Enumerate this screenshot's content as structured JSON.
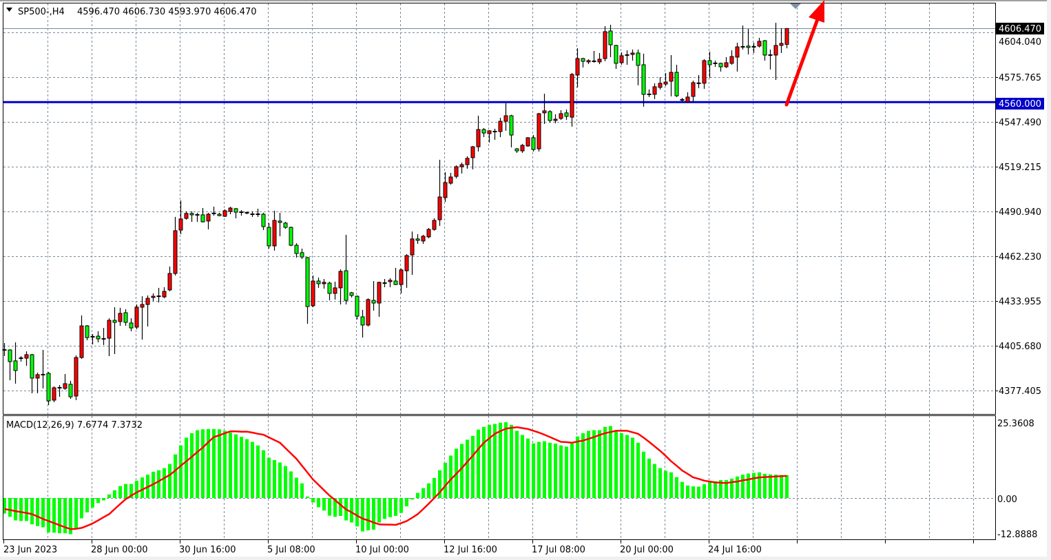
{
  "header": {
    "symbol": "SP500-,H4",
    "ohlc": "4596.470 4606.730 4593.970 4606.470"
  },
  "price_axis": {
    "labels": [
      "4604.040",
      "4575.765",
      "4547.490",
      "4519.215",
      "4490.940",
      "4462.230",
      "4433.955",
      "4405.680",
      "4377.405"
    ],
    "bid_label": "4606.470",
    "line_label": "4560.000"
  },
  "macd_axis": {
    "labels": [
      "25.3608",
      "0.00",
      "-12.8888"
    ]
  },
  "macd_header": "MACD(12,26,9) 7.6774 7.3732",
  "time_axis": {
    "labels": [
      "23 Jun 2023",
      "28 Jun 00:00",
      "30 Jun 16:00",
      "5 Jul 08:00",
      "10 Jul 00:00",
      "12 Jul 16:00",
      "17 Jul 08:00",
      "20 Jul 00:00",
      "24 Jul 16:00"
    ]
  },
  "colors": {
    "bull_body": "#ff0000",
    "bear_body": "#00ff00",
    "wick": "#000000",
    "hline": "#0000c8",
    "bid_line": "#778899",
    "grid": "#778899",
    "macd_hist": "#00ff00",
    "signal": "#ff0000",
    "arrow": "#ff0000"
  },
  "chart_data": [
    {
      "type": "candlestick",
      "title": "SP500-,H4",
      "timeframe": "H4",
      "ylim": [
        4364,
        4620
      ],
      "grid": true,
      "horizontal_line": 4560.0,
      "bid": 4606.47,
      "annotation": "red-arrow-up",
      "ohlc": [
        [
          4403.5,
          4407.9,
          4399.6,
          4403.5
        ],
        [
          4403.5,
          4403.9,
          4384.4,
          4396.1
        ],
        [
          4396.6,
          4408.3,
          4382.2,
          4390.5
        ],
        [
          4398.3,
          4399.6,
          4396.1,
          4398.3
        ],
        [
          4398.3,
          4402.6,
          4393.5,
          4400.5
        ],
        [
          4400.5,
          4401.0,
          4376.1,
          4385.7
        ],
        [
          4385.7,
          4389.2,
          4376.1,
          4387.9
        ],
        [
          4387.9,
          4403.5,
          4379.2,
          4387.9
        ],
        [
          4388.7,
          4389.5,
          4368.7,
          4371.3
        ],
        [
          4371.8,
          4380.5,
          4370.5,
          4379.6
        ],
        [
          4379.6,
          4381.3,
          4373.9,
          4379.6
        ],
        [
          4379.2,
          4388.3,
          4378.3,
          4382.2
        ],
        [
          4381.8,
          4384.0,
          4372.6,
          4373.9
        ],
        [
          4374.4,
          4400.0,
          4371.8,
          4398.7
        ],
        [
          4398.7,
          4425.3,
          4397.9,
          4418.7
        ],
        [
          4418.7,
          4419.2,
          4409.6,
          4411.3
        ],
        [
          4411.8,
          4413.5,
          4407.0,
          4411.8
        ],
        [
          4412.2,
          4415.3,
          4408.3,
          4410.5
        ],
        [
          4410.5,
          4417.4,
          4406.6,
          4410.5
        ],
        [
          4410.9,
          4423.5,
          4399.6,
          4422.2
        ],
        [
          4422.2,
          4430.5,
          4400.9,
          4420.9
        ],
        [
          4421.4,
          4430.1,
          4418.7,
          4426.6
        ],
        [
          4427.0,
          4429.2,
          4418.7,
          4420.9
        ],
        [
          4420.5,
          4423.5,
          4415.3,
          4417.4
        ],
        [
          4417.9,
          4432.2,
          4416.6,
          4430.5
        ],
        [
          4430.5,
          4437.4,
          4410.0,
          4432.2
        ],
        [
          4432.2,
          4437.9,
          4418.3,
          4436.1
        ],
        [
          4436.6,
          4439.2,
          4434.4,
          4437.4
        ],
        [
          4437.4,
          4442.7,
          4433.5,
          4437.4
        ],
        [
          4437.0,
          4443.1,
          4436.1,
          4440.5
        ],
        [
          4441.4,
          4456.2,
          4440.5,
          4451.8
        ],
        [
          4451.8,
          4487.5,
          4450.5,
          4478.8
        ],
        [
          4479.2,
          4497.9,
          4476.6,
          4486.2
        ],
        [
          4486.6,
          4491.0,
          4485.7,
          4489.7
        ],
        [
          4489.7,
          4491.0,
          4484.4,
          4488.8
        ],
        [
          4488.3,
          4490.1,
          4484.4,
          4488.8
        ],
        [
          4488.8,
          4493.1,
          4484.0,
          4484.4
        ],
        [
          4484.9,
          4490.1,
          4479.6,
          4489.2
        ],
        [
          4489.7,
          4494.0,
          4488.3,
          4489.7
        ],
        [
          4489.2,
          4490.1,
          4487.9,
          4488.3
        ],
        [
          4487.9,
          4492.3,
          4487.5,
          4491.4
        ],
        [
          4491.0,
          4494.0,
          4489.2,
          4493.1
        ],
        [
          4492.7,
          4493.1,
          4486.6,
          4490.5
        ],
        [
          4490.5,
          4491.8,
          4488.3,
          4490.5
        ],
        [
          4490.1,
          4490.9,
          4489.2,
          4490.1
        ],
        [
          4489.2,
          4491.0,
          4487.5,
          4489.2
        ],
        [
          4489.2,
          4492.7,
          4487.5,
          4489.2
        ],
        [
          4489.2,
          4490.1,
          4479.2,
          4481.4
        ],
        [
          4480.9,
          4483.6,
          4467.5,
          4469.2
        ],
        [
          4469.2,
          4491.4,
          4466.2,
          4485.3
        ],
        [
          4484.9,
          4490.1,
          4475.3,
          4484.0
        ],
        [
          4483.6,
          4484.4,
          4480.0,
          4480.9
        ],
        [
          4480.9,
          4481.4,
          4469.0,
          4469.6
        ],
        [
          4469.6,
          4470.9,
          4461.8,
          4464.4
        ],
        [
          4464.9,
          4467.5,
          4460.9,
          4462.2
        ],
        [
          4461.8,
          4462.2,
          4420.0,
          4430.9
        ],
        [
          4431.4,
          4450.5,
          4430.5,
          4447.0
        ],
        [
          4447.0,
          4449.2,
          4442.7,
          4445.3
        ],
        [
          4445.3,
          4448.3,
          4442.2,
          4446.2
        ],
        [
          4445.7,
          4446.6,
          4434.8,
          4439.2
        ],
        [
          4439.2,
          4446.6,
          4435.3,
          4442.7
        ],
        [
          4442.7,
          4454.4,
          4432.2,
          4453.1
        ],
        [
          4453.5,
          4476.2,
          4432.2,
          4434.8
        ],
        [
          4439.6,
          4440.1,
          4436.6,
          4437.9
        ],
        [
          4437.4,
          4437.9,
          4422.7,
          4424.8
        ],
        [
          4424.4,
          4428.8,
          4411.3,
          4419.2
        ],
        [
          4419.2,
          4436.1,
          4418.3,
          4435.3
        ],
        [
          4434.8,
          4447.0,
          4428.3,
          4433.1
        ],
        [
          4433.1,
          4446.6,
          4424.4,
          4446.2
        ],
        [
          4445.7,
          4448.3,
          4443.1,
          4445.7
        ],
        [
          4446.6,
          4448.8,
          4443.1,
          4447.5
        ],
        [
          4447.0,
          4455.3,
          4444.4,
          4444.8
        ],
        [
          4444.8,
          4454.9,
          4439.2,
          4454.0
        ],
        [
          4453.5,
          4464.0,
          4442.7,
          4463.1
        ],
        [
          4463.5,
          4478.3,
          4450.9,
          4473.6
        ],
        [
          4473.6,
          4476.6,
          4470.5,
          4472.7
        ],
        [
          4472.3,
          4476.2,
          4470.5,
          4475.3
        ],
        [
          4474.9,
          4480.5,
          4474.0,
          4479.6
        ],
        [
          4479.6,
          4486.6,
          4478.8,
          4485.3
        ],
        [
          4485.7,
          4523.6,
          4481.8,
          4500.1
        ],
        [
          4499.7,
          4515.8,
          4497.0,
          4509.2
        ],
        [
          4508.8,
          4515.3,
          4507.9,
          4512.7
        ],
        [
          4513.1,
          4520.1,
          4511.8,
          4519.2
        ],
        [
          4519.2,
          4521.8,
          4514.9,
          4520.5
        ],
        [
          4520.5,
          4525.8,
          4517.9,
          4524.5
        ],
        [
          4524.9,
          4532.3,
          4517.5,
          4531.8
        ],
        [
          4531.8,
          4551.4,
          4528.8,
          4542.7
        ],
        [
          4542.7,
          4543.6,
          4537.9,
          4540.5
        ],
        [
          4540.1,
          4542.3,
          4534.5,
          4541.9
        ],
        [
          4541.4,
          4543.2,
          4536.2,
          4541.4
        ],
        [
          4541.4,
          4550.1,
          4537.9,
          4547.9
        ],
        [
          4547.9,
          4559.3,
          4541.9,
          4551.4
        ],
        [
          4551.4,
          4552.0,
          4531.4,
          4539.2
        ],
        [
          4530.5,
          4531.0,
          4527.9,
          4529.2
        ],
        [
          4529.2,
          4533.6,
          4527.9,
          4532.7
        ],
        [
          4532.3,
          4537.9,
          4531.8,
          4537.5
        ],
        [
          4537.5,
          4539.2,
          4528.8,
          4530.1
        ],
        [
          4530.5,
          4553.2,
          4528.8,
          4552.7
        ],
        [
          4553.2,
          4565.3,
          4546.2,
          4554.5
        ],
        [
          4554.0,
          4554.9,
          4547.1,
          4548.4
        ],
        [
          4548.4,
          4552.3,
          4546.6,
          4549.2
        ],
        [
          4549.7,
          4554.9,
          4548.8,
          4552.7
        ],
        [
          4553.2,
          4555.3,
          4548.8,
          4551.0
        ],
        [
          4550.5,
          4578.4,
          4544.5,
          4577.5
        ],
        [
          4577.1,
          4594.0,
          4569.3,
          4587.5
        ],
        [
          4587.5,
          4588.0,
          4581.9,
          4585.8
        ],
        [
          4585.4,
          4587.1,
          4584.0,
          4586.2
        ],
        [
          4585.8,
          4592.3,
          4584.9,
          4585.8
        ],
        [
          4585.4,
          4591.0,
          4584.0,
          4587.1
        ],
        [
          4587.5,
          4608.0,
          4585.8,
          4604.5
        ],
        [
          4604.9,
          4608.8,
          4588.4,
          4596.2
        ],
        [
          4595.8,
          4596.2,
          4581.0,
          4584.5
        ],
        [
          4584.9,
          4591.4,
          4583.6,
          4589.3
        ],
        [
          4589.7,
          4592.7,
          4583.6,
          4589.7
        ],
        [
          4590.1,
          4593.2,
          4586.2,
          4591.0
        ],
        [
          4591.0,
          4593.2,
          4570.6,
          4583.2
        ],
        [
          4583.6,
          4590.6,
          4557.1,
          4564.9
        ],
        [
          4564.9,
          4568.0,
          4563.2,
          4564.9
        ],
        [
          4564.9,
          4571.9,
          4561.9,
          4569.7
        ],
        [
          4569.3,
          4575.8,
          4568.0,
          4571.9
        ],
        [
          4571.4,
          4578.4,
          4570.1,
          4572.7
        ],
        [
          4573.2,
          4589.7,
          4563.6,
          4578.8
        ],
        [
          4578.8,
          4583.6,
          4563.2,
          4564.0
        ],
        [
          4561.4,
          4562.7,
          4560.1,
          4561.4
        ],
        [
          4560.1,
          4566.2,
          4559.5,
          4563.2
        ],
        [
          4563.6,
          4573.6,
          4560.1,
          4572.3
        ],
        [
          4571.9,
          4577.1,
          4568.8,
          4571.9
        ],
        [
          4571.9,
          4587.1,
          4568.4,
          4586.2
        ],
        [
          4586.2,
          4591.9,
          4575.3,
          4583.6
        ],
        [
          4584.5,
          4586.2,
          4582.3,
          4584.5
        ],
        [
          4584.5,
          4584.9,
          4579.3,
          4582.3
        ],
        [
          4582.3,
          4588.4,
          4581.5,
          4584.9
        ],
        [
          4584.5,
          4592.7,
          4583.6,
          4588.8
        ],
        [
          4588.4,
          4597.5,
          4579.3,
          4594.9
        ],
        [
          4594.9,
          4608.4,
          4593.2,
          4594.9
        ],
        [
          4595.4,
          4606.2,
          4590.1,
          4594.5
        ],
        [
          4594.9,
          4597.5,
          4591.0,
          4594.9
        ],
        [
          4595.4,
          4600.6,
          4594.5,
          4598.4
        ],
        [
          4598.8,
          4599.2,
          4586.2,
          4589.7
        ],
        [
          4589.7,
          4593.2,
          4580.6,
          4589.7
        ],
        [
          4589.7,
          4610.1,
          4574.0,
          4595.8
        ],
        [
          4595.8,
          4606.7,
          4591.0,
          4597.1
        ],
        [
          4596.47,
          4606.73,
          4593.97,
          4606.47
        ]
      ]
    },
    {
      "type": "bar+line",
      "title": "MACD(12,26,9)",
      "ylim": [
        -12.8888,
        25.3608
      ],
      "macd": [
        -5.2,
        -6.3,
        -7.5,
        -7.7,
        -7.7,
        -8.8,
        -9.4,
        -9.8,
        -11.5,
        -11.6,
        -11.8,
        -11.8,
        -12.1,
        -10.2,
        -6.8,
        -4.8,
        -3.2,
        -1.7,
        -0.8,
        1.2,
        2.6,
        4.0,
        4.7,
        4.7,
        5.8,
        6.9,
        7.8,
        8.8,
        9.3,
        10.0,
        11.4,
        14.6,
        17.6,
        20.2,
        21.7,
        22.7,
        23.0,
        23.1,
        23.1,
        23.0,
        22.5,
        21.9,
        21.3,
        20.5,
        19.7,
        18.8,
        17.6,
        16.0,
        13.5,
        12.7,
        11.9,
        10.7,
        8.9,
        6.8,
        4.9,
        0.5,
        -1.5,
        -3.1,
        -4.2,
        -5.9,
        -6.3,
        -6.0,
        -7.5,
        -8.2,
        -9.5,
        -11.2,
        -10.8,
        -10.6,
        -8.2,
        -7.0,
        -6.4,
        -6.0,
        -5.0,
        -2.8,
        -0.5,
        1.7,
        3.3,
        4.9,
        6.7,
        9.3,
        11.8,
        14.2,
        16.5,
        18.1,
        19.5,
        20.8,
        22.9,
        23.8,
        24.5,
        24.8,
        25.2,
        25.4,
        24.5,
        22.5,
        21.1,
        19.9,
        18.3,
        18.8,
        19.0,
        18.5,
        18.2,
        17.6,
        17.2,
        18.2,
        20.6,
        21.7,
        22.5,
        22.7,
        22.7,
        23.8,
        24.1,
        22.6,
        21.7,
        21.1,
        20.2,
        18.5,
        15.5,
        13.2,
        11.4,
        10.0,
        9.1,
        8.6,
        7.0,
        5.4,
        4.2,
        3.9,
        3.8,
        4.6,
        5.6,
        5.6,
        6.0,
        6.0,
        6.5,
        7.2,
        7.8,
        8.2,
        8.4,
        8.6,
        8.1,
        7.9,
        7.8,
        7.7,
        7.6774
      ],
      "signal": [
        -3.7,
        -4.0,
        -4.4,
        -4.7,
        -5.0,
        -5.4,
        -6.2,
        -7.0,
        -7.7,
        -8.4,
        -9.1,
        -9.8,
        -10.4,
        -10.3,
        -10.0,
        -9.3,
        -8.5,
        -7.5,
        -6.4,
        -5.4,
        -3.7,
        -2.0,
        -0.4,
        0.8,
        1.9,
        2.8,
        3.7,
        4.6,
        5.6,
        6.7,
        7.7,
        9.2,
        10.8,
        12.3,
        13.8,
        15.4,
        16.9,
        18.7,
        20.4,
        21.0,
        21.7,
        22.3,
        22.3,
        22.2,
        22.2,
        21.9,
        21.5,
        21.2,
        20.3,
        19.4,
        18.5,
        16.7,
        14.9,
        13.1,
        10.8,
        8.5,
        6.2,
        4.4,
        2.6,
        0.8,
        -0.7,
        -2.3,
        -3.8,
        -4.8,
        -5.9,
        -6.9,
        -7.5,
        -8.2,
        -8.8,
        -8.9,
        -8.9,
        -9.0,
        -8.4,
        -7.7,
        -6.6,
        -5.4,
        -3.7,
        -1.9,
        0.0,
        1.9,
        4.1,
        6.2,
        8.1,
        10.0,
        12.1,
        14.2,
        16.4,
        18.5,
        20.0,
        21.5,
        22.4,
        23.2,
        23.5,
        23.7,
        23.4,
        23.1,
        22.5,
        21.9,
        21.2,
        20.4,
        19.6,
        18.8,
        18.7,
        18.5,
        18.9,
        19.2,
        19.8,
        20.4,
        21.1,
        21.7,
        22.1,
        22.5,
        22.5,
        22.5,
        22.0,
        21.5,
        20.2,
        18.8,
        17.3,
        15.8,
        14.1,
        12.3,
        10.8,
        9.2,
        8.1,
        6.9,
        6.4,
        5.8,
        5.5,
        5.2,
        5.1,
        5.0,
        5.3,
        5.5,
        5.9,
        6.2,
        6.6,
        6.9,
        7.0,
        7.1,
        7.2,
        7.3,
        7.3732
      ]
    }
  ]
}
